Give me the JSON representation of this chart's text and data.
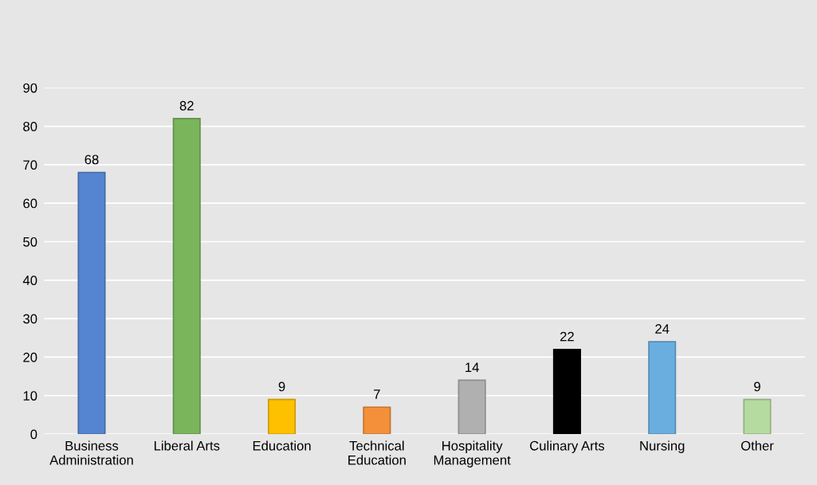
{
  "chart_data": {
    "type": "bar",
    "categories": [
      "Business\nAdministration",
      "Liberal Arts",
      "Education",
      "Technical\nEducation",
      "Hospitality\nManagement",
      "Culinary Arts",
      "Nursing",
      "Other"
    ],
    "values": [
      68,
      82,
      9,
      7,
      14,
      22,
      24,
      9
    ],
    "colors": [
      "#5585d0",
      "#7ab55c",
      "#ffc000",
      "#f4903a",
      "#b0b0b0",
      "#000000",
      "#6aaee0",
      "#b5dba0"
    ],
    "ylim": [
      0,
      90
    ],
    "yticks": [
      0,
      10,
      20,
      30,
      40,
      50,
      60,
      70,
      80,
      90
    ],
    "grid": "y",
    "data_labels": true
  }
}
